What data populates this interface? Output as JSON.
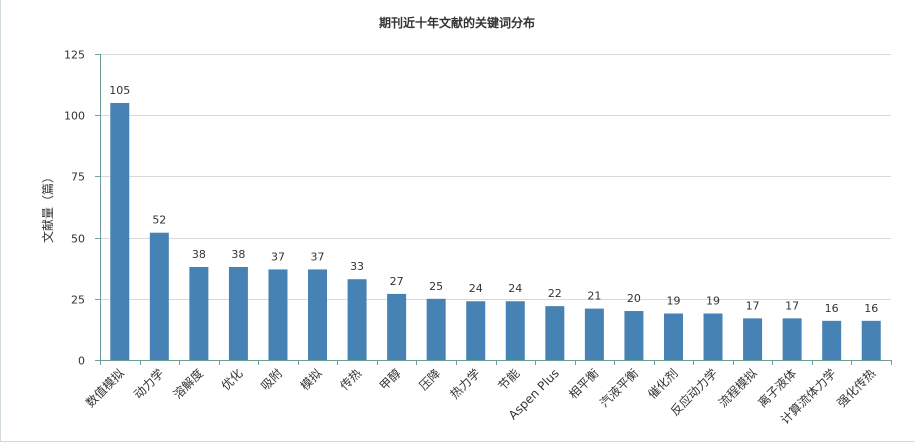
{
  "chart_data": {
    "type": "bar",
    "title": "期刊近十年文献的关键词分布",
    "xlabel": "",
    "ylabel": "文献量（篇）",
    "ylim": [
      0,
      125
    ],
    "yticks": [
      0,
      25,
      50,
      75,
      100,
      125
    ],
    "categories": [
      "数值模拟",
      "动力学",
      "溶解度",
      "优化",
      "吸附",
      "模拟",
      "传热",
      "甲醇",
      "压降",
      "热力学",
      "节能",
      "Aspen Plus",
      "相平衡",
      "汽液平衡",
      "催化剂",
      "反应动力学",
      "流程模拟",
      "离子液体",
      "计算流体力学",
      "强化传热"
    ],
    "values": [
      105,
      52,
      38,
      38,
      37,
      37,
      33,
      27,
      25,
      24,
      24,
      22,
      21,
      20,
      19,
      19,
      17,
      17,
      16,
      16
    ],
    "show_data_labels": true,
    "grid": true,
    "bar_color": "#4682b4",
    "axis_color": "#6f9f98",
    "grid_color": "#d9d9d9",
    "text_color": "#333333"
  }
}
